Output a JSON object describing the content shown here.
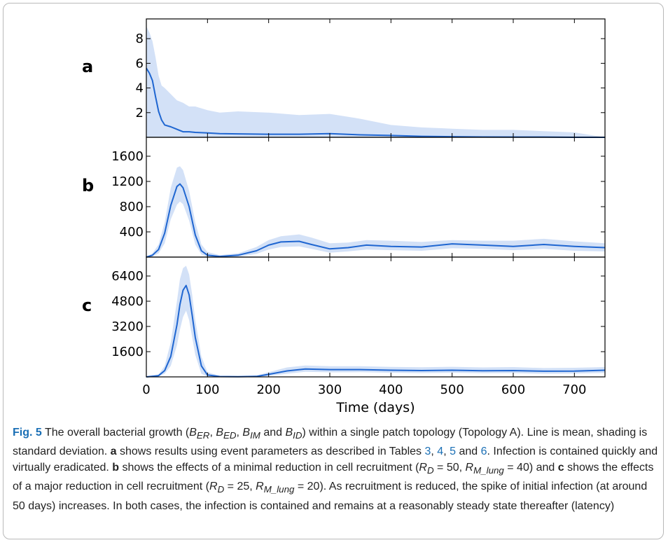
{
  "chart_data": [
    {
      "type": "line",
      "panel_label": "a",
      "xlim": [
        0,
        750
      ],
      "ylim": [
        0,
        9.6
      ],
      "yticks": [
        "2",
        "4",
        "6",
        "8"
      ],
      "x": [
        0,
        5,
        10,
        15,
        20,
        25,
        30,
        40,
        50,
        60,
        70,
        80,
        100,
        120,
        150,
        200,
        250,
        300,
        350,
        400,
        450,
        500,
        550,
        600,
        650,
        700,
        750
      ],
      "series": [
        {
          "name": "mean",
          "values": [
            5.6,
            5.2,
            4.6,
            3.3,
            2.1,
            1.4,
            1.0,
            0.85,
            0.65,
            0.45,
            0.45,
            0.4,
            0.35,
            0.3,
            0.28,
            0.25,
            0.25,
            0.3,
            0.2,
            0.15,
            0.08,
            0.05,
            0.03,
            0.02,
            0.02,
            0.0,
            0.0
          ]
        },
        {
          "name": "upper",
          "values": [
            9.0,
            8.5,
            7.8,
            6.5,
            5.0,
            4.2,
            4.0,
            3.5,
            3.0,
            2.8,
            2.5,
            2.5,
            2.2,
            2.0,
            2.1,
            2.0,
            1.8,
            1.9,
            1.5,
            1.0,
            0.8,
            0.7,
            0.6,
            0.6,
            0.5,
            0.4,
            0.0
          ]
        }
      ]
    },
    {
      "type": "line",
      "panel_label": "b",
      "xlim": [
        0,
        750
      ],
      "ylim": [
        0,
        1900
      ],
      "yticks": [
        "400",
        "800",
        "1200",
        "1600"
      ],
      "x": [
        0,
        10,
        20,
        30,
        40,
        50,
        55,
        60,
        70,
        80,
        90,
        100,
        120,
        150,
        180,
        200,
        220,
        250,
        270,
        300,
        330,
        360,
        400,
        450,
        500,
        550,
        600,
        650,
        700,
        750
      ],
      "series": [
        {
          "name": "mean",
          "values": [
            0,
            30,
            120,
            380,
            820,
            1120,
            1160,
            1100,
            800,
            350,
            100,
            30,
            10,
            30,
            100,
            190,
            240,
            250,
            200,
            130,
            150,
            190,
            170,
            160,
            210,
            190,
            170,
            200,
            170,
            150
          ]
        },
        {
          "name": "upper",
          "values": [
            0,
            60,
            200,
            550,
            1100,
            1420,
            1440,
            1380,
            1050,
            550,
            200,
            80,
            30,
            60,
            160,
            270,
            330,
            360,
            310,
            220,
            230,
            270,
            260,
            240,
            270,
            260,
            260,
            290,
            250,
            220
          ]
        },
        {
          "name": "lower",
          "values": [
            0,
            10,
            60,
            220,
            600,
            830,
            880,
            840,
            580,
            200,
            40,
            5,
            0,
            5,
            50,
            120,
            160,
            170,
            130,
            70,
            90,
            120,
            110,
            100,
            140,
            130,
            110,
            130,
            100,
            90
          ]
        }
      ]
    },
    {
      "type": "line",
      "panel_label": "c",
      "xlim": [
        0,
        750
      ],
      "ylim": [
        0,
        7600
      ],
      "yticks": [
        "1600",
        "3200",
        "4800",
        "6400"
      ],
      "x": [
        0,
        20,
        30,
        40,
        50,
        55,
        60,
        65,
        70,
        75,
        80,
        90,
        100,
        120,
        150,
        180,
        200,
        230,
        260,
        300,
        350,
        400,
        450,
        500,
        550,
        600,
        650,
        700,
        750
      ],
      "series": [
        {
          "name": "mean",
          "values": [
            0,
            80,
            400,
            1300,
            3300,
            4600,
            5500,
            5800,
            5200,
            3900,
            2500,
            700,
            120,
            20,
            10,
            30,
            160,
            380,
            500,
            460,
            460,
            420,
            400,
            420,
            390,
            400,
            360,
            370,
            420
          ]
        },
        {
          "name": "upper",
          "values": [
            0,
            150,
            700,
            2200,
            4800,
            6200,
            6900,
            7050,
            6500,
            5200,
            3600,
            1300,
            300,
            60,
            30,
            80,
            300,
            600,
            720,
            680,
            680,
            630,
            610,
            640,
            600,
            620,
            560,
            580,
            620
          ]
        },
        {
          "name": "lower",
          "values": [
            0,
            30,
            200,
            700,
            2000,
            3000,
            3800,
            4200,
            3600,
            2500,
            1400,
            200,
            20,
            0,
            0,
            5,
            60,
            200,
            320,
            290,
            300,
            260,
            240,
            260,
            230,
            240,
            200,
            210,
            250
          ]
        }
      ]
    }
  ],
  "axis": {
    "xticks": [
      "0",
      "100",
      "200",
      "300",
      "400",
      "500",
      "600",
      "700"
    ],
    "xlabel": "Time (days)"
  },
  "colors": {
    "line": "#1f66d1",
    "band": "#d3e1f7"
  },
  "caption": {
    "fig": "Fig. 5",
    "t1": " The overall bacterial growth (",
    "b_er": "B",
    "b_er_sub": "ER",
    "sep1": ", ",
    "b_ed": "B",
    "b_ed_sub": "ED",
    "sep2": ", ",
    "b_im": "B",
    "b_im_sub": "IM",
    "sep3": " and ",
    "b_id": "B",
    "b_id_sub": "ID",
    "t2": ") within a single patch topology (Topology A). Line is mean, shading is standard deviation. ",
    "a": "a",
    "t3": " shows results using event parameters as described in Tables ",
    "ref3": "3",
    "c1": ", ",
    "ref4": "4",
    "c2": ", ",
    "ref5": "5",
    "t4": " and ",
    "ref6": "6",
    "t5": ". Infection is contained quickly and virtually eradicated. ",
    "b": "b",
    "t6": " shows the effects of a minimal reduction in cell recruitment (",
    "rd1": "R",
    "rd1_sub": "D",
    "rd1_val": " = 50, ",
    "rm1": "R",
    "rm1_sub": "M_lung",
    "rm1_val": " = 40) and ",
    "c": "c",
    "t7": " shows the effects of a major reduction in cell recruitment (",
    "rd2": "R",
    "rd2_sub": "D",
    "rd2_val": " = 25, ",
    "rm2": "R",
    "rm2_sub": "M_lung",
    "rm2_val": " = 20). As recruitment is reduced, the spike of initial infection (at around 50 days) increases. In both cases, the infection is contained and remains at a reasonably steady state thereafter (latency)"
  }
}
